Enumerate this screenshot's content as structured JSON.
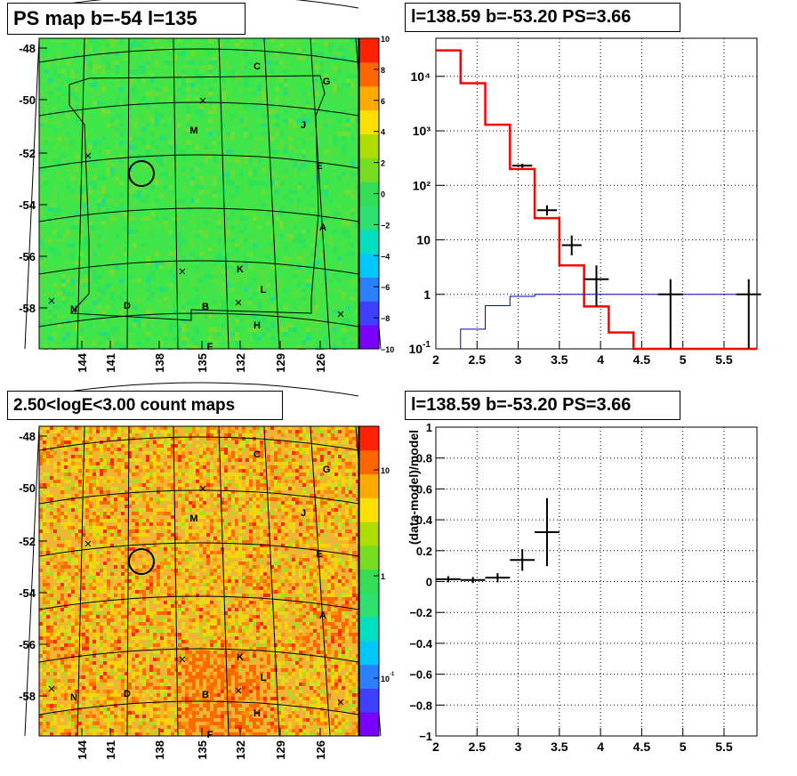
{
  "chart_data": [
    {
      "type": "heatmap",
      "title": "PS map b=-54 l=135",
      "x_ticks": [
        "144",
        "141",
        "138",
        "135",
        "132",
        "129",
        "126"
      ],
      "y_ticks": [
        "-48",
        "-50",
        "-52",
        "-54",
        "-56",
        "-58"
      ],
      "colorbar_ticks": [
        "10",
        "8",
        "6",
        "4",
        "2",
        "0",
        "−2",
        "−4",
        "−6",
        "−8",
        "−10"
      ],
      "colormap": [
        "#7a00ff",
        "#3f3fff",
        "#2a80ff",
        "#00c8ff",
        "#00e0c0",
        "#2de070",
        "#33dd55",
        "#77dd22",
        "#b0dd00",
        "#ffe000",
        "#ffaa00",
        "#ff6600",
        "#ff2200"
      ],
      "background_color": "#3ee64a",
      "source_labels": [
        "C",
        "G",
        "M",
        "J",
        "E",
        "A",
        "K",
        "L",
        "N",
        "D",
        "B",
        "H",
        "F"
      ]
    },
    {
      "type": "line",
      "title": "l=138.59 b=-53.20 PS=3.66",
      "x_ticks": [
        "2",
        "2.5",
        "3",
        "3.5",
        "4",
        "4.5",
        "5",
        "5.5"
      ],
      "y_ticks": [
        "10<sup>-1</sup>",
        "1",
        "10",
        "10²",
        "10³",
        "10⁴"
      ],
      "y_scale": "log",
      "xlim": [
        2,
        5.9
      ],
      "ylim": [
        0.1,
        50000
      ],
      "grid": true,
      "series": [
        {
          "color": "#ff0000",
          "style": "histogram",
          "edges": [
            2.0,
            2.3,
            2.6,
            2.9,
            3.2,
            3.5,
            3.8,
            4.1,
            4.4,
            5.9
          ],
          "values": [
            30000,
            7500,
            1300,
            200,
            25,
            3.4,
            0.6,
            0.2,
            0.1
          ]
        },
        {
          "color": "#0000cc",
          "style": "histogram",
          "edges": [
            2.3,
            2.6,
            2.9,
            3.2,
            3.5,
            3.8,
            4.1,
            4.4,
            5.9
          ],
          "values": [
            0.23,
            0.62,
            0.92,
            1.0,
            1.0,
            1.0,
            1.0,
            1.0
          ]
        },
        {
          "color": "#000000",
          "style": "errorbar",
          "points": [
            {
              "x": 3.05,
              "y": 230,
              "xerr": 0.12,
              "ylo": 210,
              "yhi": 250
            },
            {
              "x": 3.35,
              "y": 35,
              "xerr": 0.12,
              "ylo": 28,
              "yhi": 43
            },
            {
              "x": 3.65,
              "y": 8,
              "xerr": 0.12,
              "ylo": 5.2,
              "yhi": 12
            },
            {
              "x": 3.95,
              "y": 1.9,
              "xerr": 0.15,
              "ylo": 0.6,
              "yhi": 3.4
            },
            {
              "x": 4.85,
              "y": 1.0,
              "xerr": 0.15,
              "ylo": 0.1,
              "yhi": 1.9
            },
            {
              "x": 5.8,
              "y": 1.0,
              "xerr": 0.15,
              "ylo": 0.1,
              "yhi": 1.9
            }
          ]
        }
      ]
    },
    {
      "type": "heatmap",
      "title": "2.50<logE<3.00 count maps",
      "x_ticks": [
        "144",
        "141",
        "138",
        "135",
        "132",
        "129",
        "126"
      ],
      "y_ticks": [
        "-48",
        "-50",
        "-52",
        "-54",
        "-56",
        "-58"
      ],
      "colorbar_ticks": [
        "10",
        "1",
        "10<sup>-1</sup>"
      ],
      "colormap": [
        "#7a00ff",
        "#3f3fff",
        "#2a80ff",
        "#00c8ff",
        "#00e0c0",
        "#2de070",
        "#33dd55",
        "#77dd22",
        "#b0dd00",
        "#ffe000",
        "#ffaa00",
        "#ff6600",
        "#ff2200"
      ],
      "background_color": "#f2b436",
      "source_labels": [
        "C",
        "G",
        "M",
        "J",
        "E",
        "A",
        "K",
        "L",
        "N",
        "D",
        "B",
        "H",
        "F"
      ]
    },
    {
      "type": "scatter",
      "title": "l=138.59 b=-53.20 PS=3.66",
      "ylabel": "(data-model)/model",
      "x_ticks": [
        "2",
        "2.5",
        "3",
        "3.5",
        "4",
        "4.5",
        "5",
        "5.5"
      ],
      "y_ticks": [
        "−1",
        "−0.8",
        "−0.6",
        "−0.4",
        "−0.2",
        "0",
        "0.2",
        "0.4",
        "0.6",
        "0.8",
        "1"
      ],
      "xlim": [
        2,
        5.9
      ],
      "ylim": [
        -1,
        1
      ],
      "grid": true,
      "points": [
        {
          "x": 2.15,
          "y": 0.015,
          "xerr": 0.15,
          "yerr": 0.02
        },
        {
          "x": 2.45,
          "y": 0.01,
          "xerr": 0.15,
          "yerr": 0.02
        },
        {
          "x": 2.75,
          "y": 0.025,
          "xerr": 0.15,
          "yerr": 0.03
        },
        {
          "x": 3.05,
          "y": 0.14,
          "xerr": 0.15,
          "yerr": 0.07
        },
        {
          "x": 3.35,
          "y": 0.32,
          "xerr": 0.15,
          "yerr": 0.22
        }
      ]
    }
  ]
}
